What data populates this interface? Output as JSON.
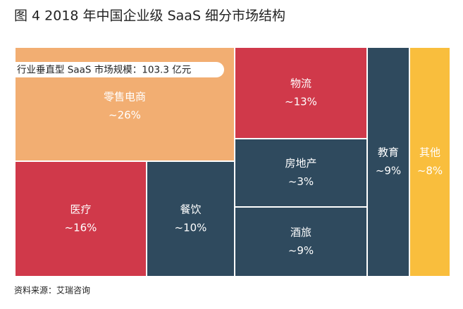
{
  "chart_data": {
    "type": "treemap",
    "title": "图 4  2018 年中国企业级 SaaS 细分市场结构",
    "annotation": "行业垂直型 SaaS 市场规模：103.3 亿元",
    "source": "资料来源：艾瑞咨询",
    "categories": [
      "零售电商",
      "医疗",
      "餐饮",
      "物流",
      "房地产",
      "酒旅",
      "教育",
      "其他"
    ],
    "values": [
      26,
      16,
      10,
      13,
      3,
      9,
      9,
      8
    ],
    "value_labels": [
      "~26%",
      "~16%",
      "~10%",
      "~13%",
      "~3%",
      "~9%",
      "~9%",
      "~8%"
    ],
    "colors": [
      "#f2ae72",
      "#d0394a",
      "#2f4a5e",
      "#d0394a",
      "#2f4a5e",
      "#2f4a5e",
      "#2f4a5e",
      "#f9be3d"
    ]
  }
}
